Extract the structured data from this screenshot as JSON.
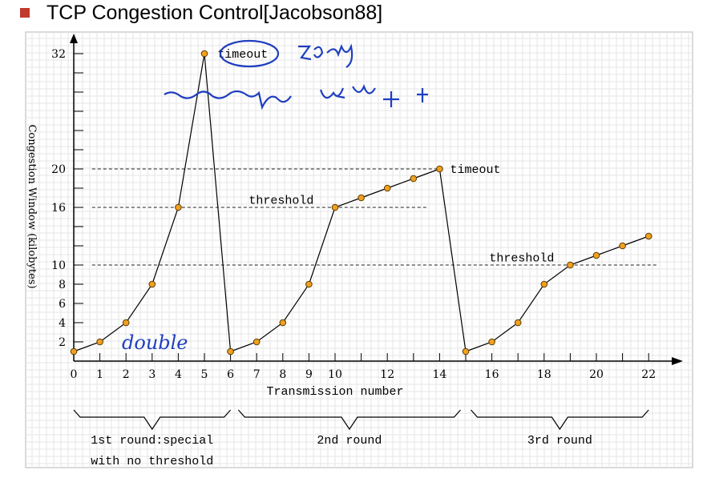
{
  "title": "TCP Congestion Control[Jacobson88]",
  "chart_data": {
    "type": "line",
    "xlabel": "Transmission number",
    "ylabel": "Congestion Window (kilobytes)",
    "x_ticks": [
      0,
      1,
      2,
      3,
      4,
      5,
      6,
      7,
      8,
      9,
      10,
      12,
      14,
      16,
      18,
      20,
      22
    ],
    "y_ticks": [
      2,
      4,
      6,
      8,
      10,
      16,
      20,
      32
    ],
    "xlim": [
      0,
      23
    ],
    "ylim": [
      0,
      34
    ],
    "grid": true,
    "series": [
      {
        "x": [
          0,
          1,
          2,
          3,
          4,
          5,
          6,
          7,
          8,
          9,
          10,
          11,
          12,
          13,
          14,
          15,
          16,
          17,
          18,
          19,
          20,
          21,
          22
        ],
        "values": [
          1,
          2,
          4,
          8,
          16,
          32,
          1,
          2,
          4,
          8,
          16,
          17,
          18,
          19,
          20,
          1,
          2,
          4,
          8,
          10,
          11,
          12,
          13
        ]
      }
    ],
    "reference_lines": [
      {
        "y": 20,
        "x_from": 0.7,
        "x_to": 14
      },
      {
        "y": 16,
        "x_from": 0.7,
        "x_to": 13.5
      },
      {
        "y": 10,
        "x_from": 0.7,
        "x_to": 22.3
      }
    ],
    "annotations": [
      {
        "text": "timeout",
        "x": 5.5,
        "y": 32
      },
      {
        "text": "timeout",
        "x": 14.4,
        "y": 20
      },
      {
        "text": "threshold",
        "x": 6.7,
        "y": 16.8
      },
      {
        "text": "threshold",
        "x": 15.9,
        "y": 10.8
      }
    ],
    "rounds": [
      {
        "lines": [
          "1st round:special",
          "with no threshold"
        ],
        "x_from": 0,
        "x_to": 6
      },
      {
        "lines": [
          "2nd round"
        ],
        "x_from": 6.3,
        "x_to": 14.8
      },
      {
        "lines": [
          "3rd round"
        ],
        "x_from": 15.2,
        "x_to": 22
      }
    ],
    "handwriting": [
      "double"
    ]
  }
}
